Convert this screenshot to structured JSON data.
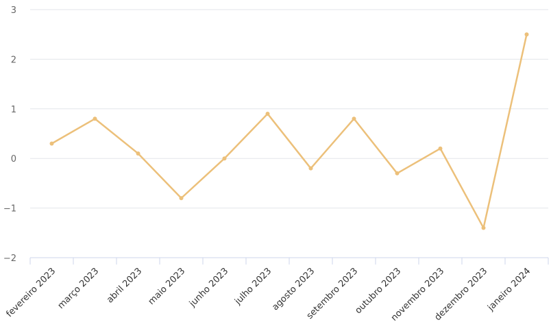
{
  "chart_data": {
    "type": "line",
    "title": "",
    "xlabel": "",
    "ylabel": "",
    "categories": [
      "fevereiro 2023",
      "março 2023",
      "abril 2023",
      "maio 2023",
      "junho 2023",
      "julho 2023",
      "agosto 2023",
      "setembro 2023",
      "outubro 2023",
      "novembro 2023",
      "dezembro 2023",
      "janeiro 2024"
    ],
    "series": [
      {
        "values": [
          0.3,
          0.8,
          0.1,
          -0.8,
          0.0,
          0.9,
          -0.2,
          0.8,
          -0.3,
          0.2,
          -1.4,
          2.5
        ]
      }
    ],
    "ylim": [
      -2,
      3
    ],
    "yticks": [
      3,
      2,
      1,
      0,
      -1,
      -2
    ],
    "ytick_labels": [
      "3",
      "2",
      "1",
      "0",
      "−1",
      "−2"
    ],
    "grid": true,
    "legend": "none",
    "colors": {
      "series": "#ecc07a",
      "grid": "#e3e6ea",
      "axis": "#ccd6eb"
    }
  }
}
